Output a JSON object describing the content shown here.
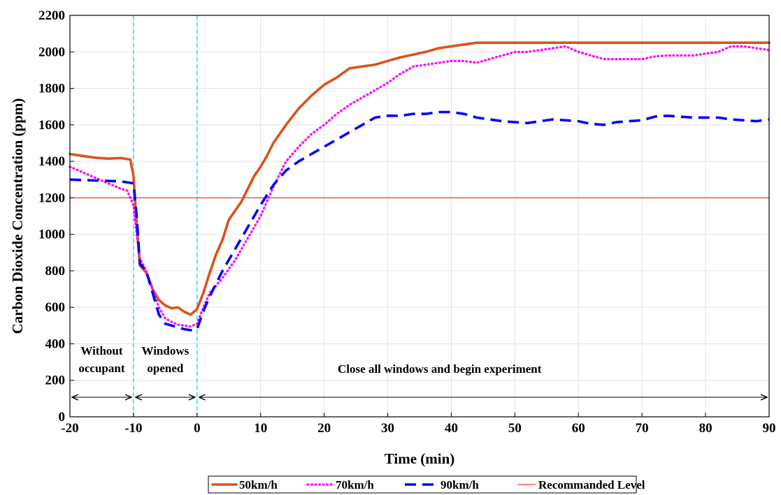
{
  "chart_data": {
    "type": "line",
    "title": "",
    "xlabel": "Time (min)",
    "ylabel": "Carbon Dioxide Concentration (ppm)",
    "xlim": [
      -20,
      90
    ],
    "ylim": [
      0,
      2200
    ],
    "xticks": [
      -20,
      -10,
      0,
      10,
      20,
      30,
      40,
      50,
      60,
      70,
      80,
      90
    ],
    "yticks": [
      0,
      200,
      400,
      600,
      800,
      1000,
      1200,
      1400,
      1600,
      1800,
      2000,
      2200
    ],
    "grid": true,
    "legend_position": "bottom",
    "series": [
      {
        "name": "50km/h",
        "color": "#d95319",
        "style": "solid",
        "points": [
          [
            -20,
            1440
          ],
          [
            -18,
            1430
          ],
          [
            -16,
            1420
          ],
          [
            -14,
            1415
          ],
          [
            -12,
            1418
          ],
          [
            -10.5,
            1410
          ],
          [
            -10,
            1320
          ],
          [
            -9.5,
            1050
          ],
          [
            -9,
            830
          ],
          [
            -8,
            790
          ],
          [
            -7,
            700
          ],
          [
            -6,
            640
          ],
          [
            -5,
            610
          ],
          [
            -4,
            595
          ],
          [
            -3,
            600
          ],
          [
            -2,
            575
          ],
          [
            -1,
            560
          ],
          [
            0,
            590
          ],
          [
            1,
            680
          ],
          [
            2,
            790
          ],
          [
            3,
            890
          ],
          [
            4,
            970
          ],
          [
            5,
            1080
          ],
          [
            6,
            1130
          ],
          [
            7,
            1180
          ],
          [
            8,
            1250
          ],
          [
            9,
            1320
          ],
          [
            10,
            1370
          ],
          [
            11,
            1430
          ],
          [
            12,
            1500
          ],
          [
            14,
            1600
          ],
          [
            16,
            1690
          ],
          [
            18,
            1760
          ],
          [
            20,
            1820
          ],
          [
            22,
            1860
          ],
          [
            24,
            1910
          ],
          [
            26,
            1920
          ],
          [
            28,
            1930
          ],
          [
            30,
            1950
          ],
          [
            32,
            1970
          ],
          [
            34,
            1985
          ],
          [
            36,
            2000
          ],
          [
            38,
            2020
          ],
          [
            40,
            2030
          ],
          [
            42,
            2040
          ],
          [
            44,
            2050
          ],
          [
            50,
            2050
          ],
          [
            60,
            2050
          ],
          [
            70,
            2050
          ],
          [
            80,
            2050
          ],
          [
            90,
            2050
          ]
        ]
      },
      {
        "name": "70km/h",
        "color": "#ff00ff",
        "style": "dotted",
        "points": [
          [
            -20,
            1370
          ],
          [
            -18,
            1340
          ],
          [
            -16,
            1310
          ],
          [
            -14,
            1280
          ],
          [
            -12,
            1250
          ],
          [
            -11,
            1240
          ],
          [
            -10,
            1160
          ],
          [
            -9.5,
            1000
          ],
          [
            -9,
            870
          ],
          [
            -8,
            800
          ],
          [
            -7,
            700
          ],
          [
            -6,
            600
          ],
          [
            -5,
            540
          ],
          [
            -4,
            520
          ],
          [
            -3,
            505
          ],
          [
            -2,
            500
          ],
          [
            -1,
            495
          ],
          [
            0,
            510
          ],
          [
            1,
            600
          ],
          [
            2,
            680
          ],
          [
            4,
            760
          ],
          [
            6,
            860
          ],
          [
            8,
            980
          ],
          [
            10,
            1100
          ],
          [
            12,
            1260
          ],
          [
            14,
            1400
          ],
          [
            16,
            1480
          ],
          [
            18,
            1550
          ],
          [
            20,
            1600
          ],
          [
            22,
            1660
          ],
          [
            24,
            1710
          ],
          [
            26,
            1750
          ],
          [
            28,
            1790
          ],
          [
            30,
            1830
          ],
          [
            32,
            1880
          ],
          [
            34,
            1920
          ],
          [
            36,
            1930
          ],
          [
            38,
            1940
          ],
          [
            40,
            1950
          ],
          [
            42,
            1950
          ],
          [
            44,
            1940
          ],
          [
            46,
            1960
          ],
          [
            48,
            1980
          ],
          [
            50,
            2000
          ],
          [
            52,
            2000
          ],
          [
            54,
            2010
          ],
          [
            56,
            2020
          ],
          [
            58,
            2030
          ],
          [
            60,
            2000
          ],
          [
            62,
            1980
          ],
          [
            64,
            1960
          ],
          [
            66,
            1960
          ],
          [
            68,
            1960
          ],
          [
            70,
            1960
          ],
          [
            72,
            1975
          ],
          [
            74,
            1980
          ],
          [
            76,
            1980
          ],
          [
            78,
            1980
          ],
          [
            80,
            1990
          ],
          [
            82,
            2000
          ],
          [
            84,
            2030
          ],
          [
            86,
            2030
          ],
          [
            88,
            2020
          ],
          [
            90,
            2010
          ]
        ]
      },
      {
        "name": "90km/h",
        "color": "#0000ff",
        "style": "dashed",
        "points": [
          [
            -20,
            1300
          ],
          [
            -16,
            1295
          ],
          [
            -12,
            1290
          ],
          [
            -10,
            1280
          ],
          [
            -9.5,
            1100
          ],
          [
            -9,
            840
          ],
          [
            -8,
            800
          ],
          [
            -7,
            680
          ],
          [
            -6,
            560
          ],
          [
            -5,
            510
          ],
          [
            -4,
            500
          ],
          [
            -3,
            490
          ],
          [
            -2,
            480
          ],
          [
            -1,
            475
          ],
          [
            0,
            480
          ],
          [
            1,
            580
          ],
          [
            2,
            660
          ],
          [
            4,
            800
          ],
          [
            6,
            920
          ],
          [
            8,
            1040
          ],
          [
            10,
            1160
          ],
          [
            12,
            1270
          ],
          [
            14,
            1350
          ],
          [
            16,
            1400
          ],
          [
            18,
            1440
          ],
          [
            20,
            1480
          ],
          [
            22,
            1520
          ],
          [
            24,
            1560
          ],
          [
            26,
            1600
          ],
          [
            28,
            1640
          ],
          [
            30,
            1650
          ],
          [
            32,
            1650
          ],
          [
            34,
            1660
          ],
          [
            36,
            1660
          ],
          [
            38,
            1670
          ],
          [
            40,
            1670
          ],
          [
            42,
            1660
          ],
          [
            44,
            1640
          ],
          [
            46,
            1630
          ],
          [
            48,
            1620
          ],
          [
            50,
            1615
          ],
          [
            52,
            1610
          ],
          [
            54,
            1620
          ],
          [
            56,
            1630
          ],
          [
            58,
            1625
          ],
          [
            60,
            1620
          ],
          [
            62,
            1605
          ],
          [
            64,
            1600
          ],
          [
            66,
            1615
          ],
          [
            68,
            1620
          ],
          [
            70,
            1625
          ],
          [
            72,
            1645
          ],
          [
            74,
            1650
          ],
          [
            76,
            1645
          ],
          [
            78,
            1640
          ],
          [
            80,
            1640
          ],
          [
            82,
            1640
          ],
          [
            84,
            1630
          ],
          [
            86,
            1625
          ],
          [
            88,
            1620
          ],
          [
            90,
            1630
          ]
        ]
      },
      {
        "name": "Recommanded Level",
        "color": "#ff3333",
        "style": "thin",
        "points": [
          [
            -20,
            1200
          ],
          [
            90,
            1200
          ]
        ]
      }
    ],
    "phase_lines": [
      -10,
      0
    ],
    "phase_line_color": "#00e5ee",
    "annotations": [
      {
        "lines": [
          "Without",
          "occupant"
        ],
        "from": -20,
        "to": -10
      },
      {
        "lines": [
          "Windows",
          "opened"
        ],
        "from": -10,
        "to": 0
      },
      {
        "lines": [
          "Close all windows and begin experiment"
        ],
        "from": 0,
        "to": 90
      }
    ]
  }
}
